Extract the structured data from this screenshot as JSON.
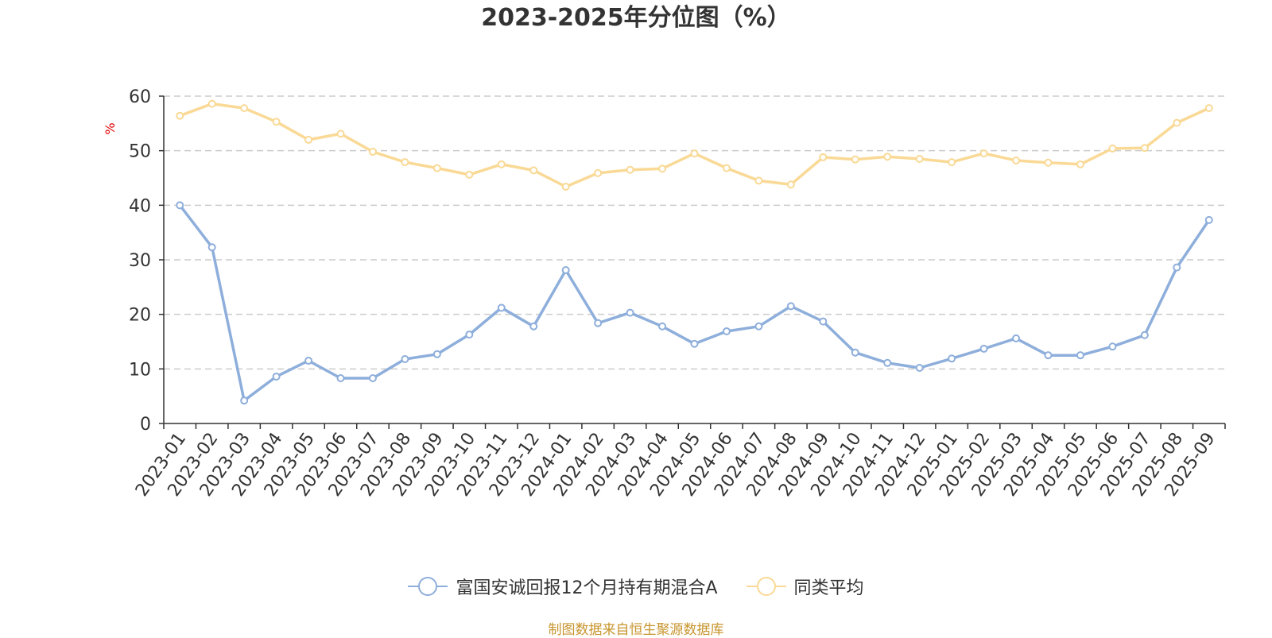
{
  "chart_data": {
    "type": "line",
    "title": "2023-2025年分位图（%）",
    "ylabel": "%",
    "ylim": [
      0,
      60
    ],
    "yticks": [
      0,
      10,
      20,
      30,
      40,
      50,
      60
    ],
    "grid": true,
    "legend_position": "bottom",
    "categories": [
      "2023-01",
      "2023-02",
      "2023-03",
      "2023-04",
      "2023-05",
      "2023-06",
      "2023-07",
      "2023-08",
      "2023-09",
      "2023-10",
      "2023-11",
      "2023-12",
      "2024-01",
      "2024-02",
      "2024-03",
      "2024-04",
      "2024-05",
      "2024-06",
      "2024-07",
      "2024-08",
      "2024-09",
      "2024-10",
      "2024-11",
      "2024-12",
      "2025-01",
      "2025-02",
      "2025-03",
      "2025-04",
      "2025-05",
      "2025-06",
      "2025-07",
      "2025-08",
      "2025-09"
    ],
    "series": [
      {
        "name": "富国安诚回报12个月持有期混合A",
        "color": "#8eaedb",
        "values": [
          40.0,
          32.3,
          4.2,
          8.6,
          11.5,
          8.3,
          8.3,
          11.8,
          12.7,
          16.3,
          21.2,
          17.8,
          28.1,
          18.4,
          20.3,
          17.8,
          14.6,
          16.9,
          17.8,
          21.5,
          18.7,
          13.0,
          11.1,
          10.2,
          11.9,
          13.7,
          15.6,
          12.5,
          12.5,
          14.1,
          16.2,
          28.6,
          37.3
        ]
      },
      {
        "name": "同类平均",
        "color": "#f9d995",
        "values": [
          56.4,
          58.6,
          57.8,
          55.3,
          52.0,
          53.1,
          49.8,
          47.9,
          46.8,
          45.6,
          47.5,
          46.4,
          43.4,
          45.9,
          46.5,
          46.7,
          49.5,
          46.8,
          44.5,
          43.8,
          48.8,
          48.4,
          48.9,
          48.5,
          47.9,
          49.5,
          48.2,
          47.8,
          47.5,
          50.4,
          50.5,
          55.1,
          57.8
        ]
      }
    ]
  },
  "source_note": "制图数据来自恒生聚源数据库"
}
